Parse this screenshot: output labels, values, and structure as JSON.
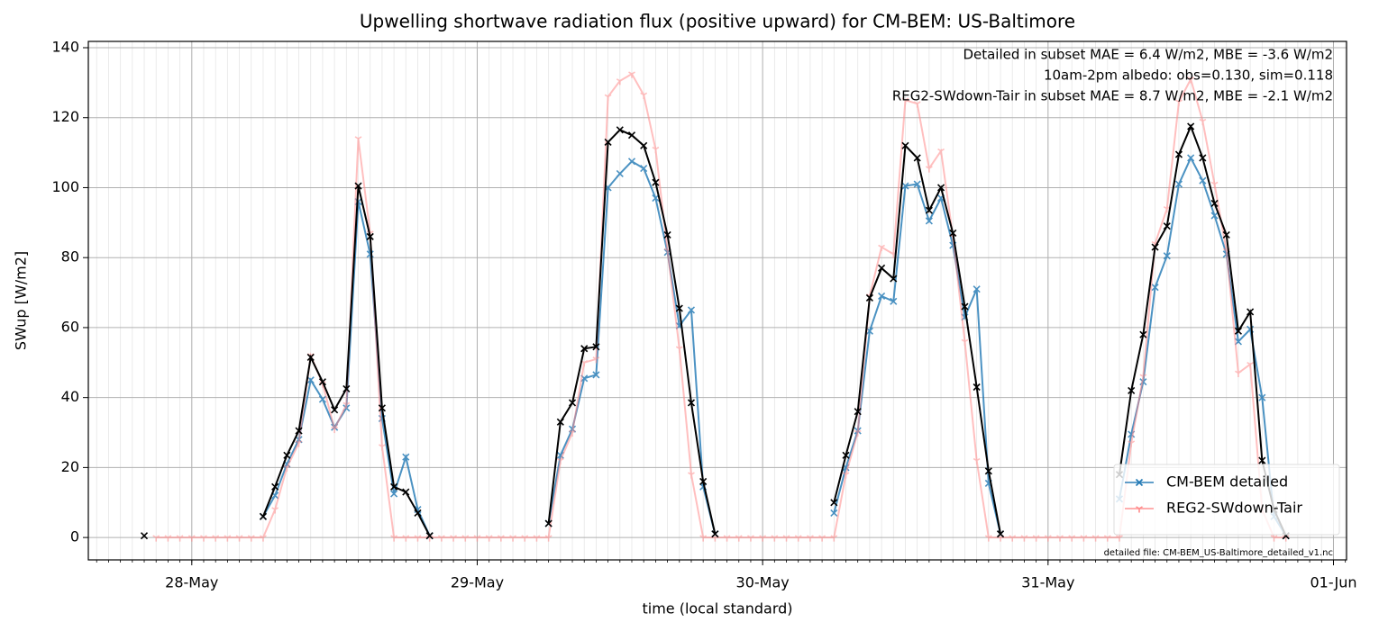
{
  "chart_data": {
    "type": "line",
    "title": "Upwelling shortwave radiation flux (positive upward) for CM-BEM: US-Baltimore",
    "xlabel": "time (local standard)",
    "ylabel": "SWup [W/m2]",
    "x": [
      -4,
      -3,
      -2,
      -1,
      0,
      1,
      2,
      3,
      4,
      5,
      6,
      7,
      8,
      9,
      10,
      11,
      12,
      13,
      14,
      15,
      16,
      17,
      18,
      19,
      20,
      21,
      22,
      23,
      24,
      25,
      26,
      27,
      28,
      29,
      30,
      31,
      32,
      33,
      34,
      35,
      36,
      37,
      38,
      39,
      40,
      41,
      42,
      43,
      44,
      45,
      46,
      47,
      48,
      49,
      50,
      51,
      52,
      53,
      54,
      55,
      56,
      57,
      58,
      59,
      60,
      61,
      62,
      63,
      64,
      65,
      66,
      67,
      68,
      69,
      70,
      71,
      72,
      73,
      74,
      75,
      76,
      77,
      78,
      79,
      80,
      81,
      82,
      83,
      84,
      85,
      86,
      87,
      88,
      89,
      90,
      91,
      92
    ],
    "xlim": [
      -8.7,
      97.1
    ],
    "xticks": [
      {
        "value": 0,
        "label": "28-May"
      },
      {
        "value": 24,
        "label": "29-May"
      },
      {
        "value": 48,
        "label": "30-May"
      },
      {
        "value": 72,
        "label": "31-May"
      },
      {
        "value": 96,
        "label": "01-Jun"
      }
    ],
    "ylim": [
      -6.4,
      141.8
    ],
    "yticks": [
      0,
      20,
      40,
      60,
      80,
      100,
      120,
      140
    ],
    "grid": true,
    "legend": "lower right",
    "series": [
      {
        "name": "CM-BEM detailed",
        "color": "#1f77b4",
        "marker": "x",
        "values": [
          null,
          null,
          null,
          null,
          null,
          null,
          null,
          null,
          null,
          null,
          6,
          12,
          21,
          28,
          45,
          39.5,
          31.5,
          37,
          96,
          81,
          34,
          12.5,
          23,
          8,
          0.5,
          null,
          null,
          null,
          null,
          null,
          null,
          null,
          null,
          null,
          4,
          23.5,
          31,
          45.5,
          46.5,
          100,
          104,
          107.5,
          105.5,
          97,
          81.5,
          60.5,
          65,
          14.5,
          1,
          null,
          null,
          null,
          null,
          null,
          null,
          null,
          null,
          null,
          7,
          20,
          30.5,
          59,
          69,
          67.5,
          100.5,
          101,
          90.5,
          97,
          83.5,
          63,
          71,
          15.5,
          1,
          null,
          null,
          null,
          null,
          null,
          null,
          null,
          null,
          null,
          11,
          29.5,
          44.5,
          71.5,
          80.5,
          101,
          108.5,
          102,
          92,
          81,
          56,
          59.5,
          40,
          6,
          0.5
        ]
      },
      {
        "name": "REG2-SWdown-Tair",
        "color": "#ff8c8c",
        "marker": "tri",
        "values": [
          null,
          0,
          0,
          0,
          0,
          0,
          0,
          0,
          0,
          0,
          0,
          8,
          20,
          27,
          52,
          44,
          31,
          38,
          114,
          87,
          26,
          0,
          0,
          0,
          0,
          0,
          0,
          0,
          0,
          0,
          0,
          0,
          0,
          0,
          0,
          22,
          30,
          50,
          51,
          126,
          130.5,
          132.5,
          126.5,
          111,
          82,
          54,
          18,
          0,
          0,
          0,
          0,
          0,
          0,
          0,
          0,
          0,
          0,
          0,
          0,
          18,
          30,
          69,
          83,
          81,
          125,
          124,
          105.5,
          110.5,
          86,
          56,
          22,
          0,
          0,
          0,
          0,
          0,
          0,
          0,
          0,
          0,
          0,
          0,
          0,
          27,
          46,
          84,
          94,
          124.5,
          131,
          119,
          101,
          82,
          47,
          49.5,
          8,
          0,
          0
        ]
      },
      {
        "color": "#000000",
        "marker": "x",
        "values": [
          0.5,
          null,
          null,
          null,
          null,
          null,
          null,
          null,
          null,
          null,
          6,
          14.5,
          23.5,
          30.5,
          51.5,
          44.5,
          36.5,
          42.5,
          100.5,
          86,
          37,
          14.5,
          13,
          7,
          0.5,
          null,
          null,
          null,
          null,
          null,
          null,
          null,
          null,
          null,
          4,
          33,
          38.5,
          54,
          54.5,
          113,
          116.5,
          115,
          112,
          101.5,
          86.5,
          65.5,
          38.5,
          16,
          1,
          null,
          null,
          null,
          null,
          null,
          null,
          null,
          null,
          null,
          10,
          23.5,
          36,
          68.5,
          77,
          74,
          112,
          108.5,
          93.5,
          100,
          87,
          66,
          43,
          19,
          1,
          null,
          null,
          null,
          null,
          null,
          null,
          null,
          null,
          null,
          18,
          42,
          58,
          83,
          89,
          109.5,
          117.5,
          108.5,
          95.5,
          86.5,
          59,
          64.5,
          22,
          8,
          0.5
        ]
      }
    ],
    "annotations": [
      {
        "text": "Detailed in subset MAE = 6.4 W/m2, MBE = -3.6 W/m2",
        "color": "#1f77b4"
      },
      {
        "text": "10am-2pm albedo: obs=0.130, sim=0.118",
        "color": "#000000"
      },
      {
        "text": "REG2-SWdown-Tair in subset MAE = 8.7 W/m2, MBE = -2.1 W/m2",
        "color": "#ff0000"
      }
    ],
    "footnote": "detailed file: CM-BEM_US-Baltimore_detailed_v1.nc"
  }
}
